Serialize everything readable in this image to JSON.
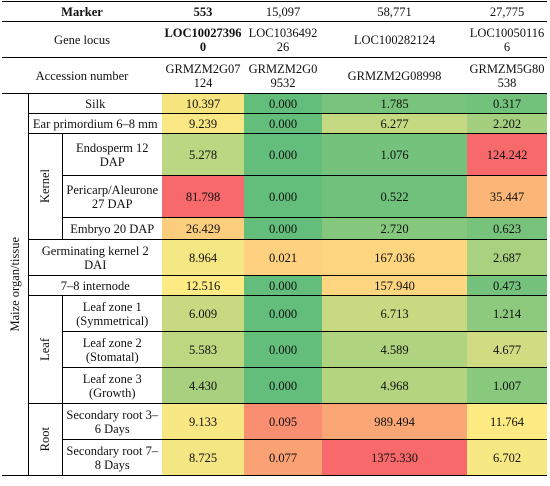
{
  "table": {
    "marker_label": "Marker",
    "markers": [
      "553",
      "15,097",
      "58,771",
      "27,775"
    ],
    "locus_label": "Gene locus",
    "loci": [
      "LOC100273960",
      "LOC103649226",
      "LOC100282124",
      "LOC100501166"
    ],
    "accession_label": "Accession number",
    "accessions": [
      "GRMZM2G07124",
      "GRMZM2G09532",
      "GRMZM2G08998",
      "GRMZM5G80538"
    ],
    "organ_label": "Maize organ/tissue",
    "group_kernel": "Kernel",
    "group_leaf": "Leaf",
    "group_root": "Root",
    "rows": [
      {
        "tissue": "Silk",
        "values": [
          "10.397",
          "0.000",
          "1.785",
          "0.317"
        ],
        "colors": [
          "#f6e47f",
          "#63be7b",
          "#78c47d",
          "#73c27c"
        ]
      },
      {
        "tissue": "Ear primordium 6–8 mm",
        "values": [
          "9.239",
          "0.000",
          "6.277",
          "2.202"
        ],
        "colors": [
          "#f9e883",
          "#63be7b",
          "#c4d981",
          "#a3cf7f"
        ]
      },
      {
        "tissue": "Endosperm 12 DAP",
        "values": [
          "5.278",
          "0.000",
          "1.076",
          "124.242"
        ],
        "colors": [
          "#bbd781",
          "#63be7b",
          "#74c27c",
          "#f8696b"
        ]
      },
      {
        "tissue": "Pericarp/Aleurone 27 DAP",
        "values": [
          "81.798",
          "0.000",
          "0.522",
          "35.447"
        ],
        "colors": [
          "#f8696b",
          "#63be7b",
          "#70c17c",
          "#fbb577"
        ]
      },
      {
        "tissue": "Embryo 20 DAP",
        "values": [
          "26.429",
          "0.000",
          "2.720",
          "0.623"
        ],
        "colors": [
          "#fccd7d",
          "#63be7b",
          "#85c87d",
          "#77c37c"
        ]
      },
      {
        "tissue": "Germinating kernel 2 DAI",
        "values": [
          "8.964",
          "0.021",
          "167.036",
          "2.687"
        ],
        "colors": [
          "#f5e784",
          "#fdd17f",
          "#fed680",
          "#a9d17f"
        ]
      },
      {
        "tissue": "7–8 internode",
        "values": [
          "12.516",
          "0.000",
          "157.940",
          "0.473"
        ],
        "colors": [
          "#feeb84",
          "#63be7b",
          "#fed680",
          "#75c27c"
        ]
      },
      {
        "tissue": "Leaf zone 1 (Symmetrical)",
        "values": [
          "6.009",
          "0.000",
          "6.713",
          "1.214"
        ],
        "colors": [
          "#c7da81",
          "#63be7b",
          "#c8da81",
          "#8dca7e"
        ]
      },
      {
        "tissue": "Leaf zone 2 (Stomatal)",
        "values": [
          "5.583",
          "0.000",
          "4.589",
          "4.677"
        ],
        "colors": [
          "#bdd881",
          "#63be7b",
          "#afd37f",
          "#d0dc82"
        ]
      },
      {
        "tissue": "Leaf zone 3 (Growth)",
        "values": [
          "4.430",
          "0.000",
          "4.968",
          "1.007"
        ],
        "colors": [
          "#a8d07f",
          "#63be7b",
          "#b4d480",
          "#88c97e"
        ]
      },
      {
        "tissue": "Secondary root 3–6 Days",
        "values": [
          "9.133",
          "0.095",
          "989.494",
          "11.764"
        ],
        "colors": [
          "#f7e883",
          "#f98e71",
          "#fba775",
          "#feeb84"
        ]
      },
      {
        "tissue": "Secondary root 7–8 Days",
        "values": [
          "8.725",
          "0.077",
          "1375.330",
          "6.702"
        ],
        "colors": [
          "#f3e683",
          "#fba274",
          "#f8696b",
          "#f6e883"
        ]
      }
    ]
  }
}
